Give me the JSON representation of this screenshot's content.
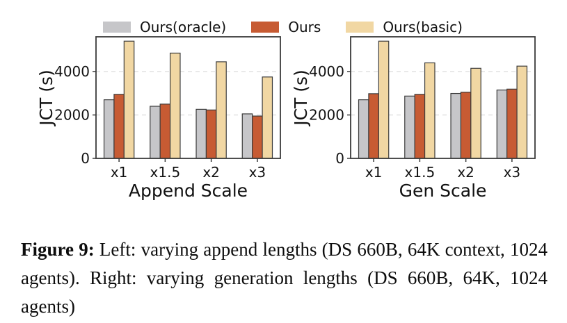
{
  "legend": {
    "items": [
      {
        "label": "Ours(oracle)",
        "color": "#c6c6c9"
      },
      {
        "label": "Ours",
        "color": "#c75b33"
      },
      {
        "label": "Ours(basic)",
        "color": "#f1d7a3"
      }
    ]
  },
  "style": {
    "bar_edge_color": "#3c3c3c",
    "axis_color": "#3a3a3a",
    "gridline_color": "#dcdcdc",
    "text_color": "#111111"
  },
  "chart_data": [
    {
      "type": "bar",
      "title": "",
      "xlabel": "Append Scale",
      "ylabel": "JCT (s)",
      "categories": [
        "x1",
        "x1.5",
        "x2",
        "x3"
      ],
      "series": [
        {
          "name": "Ours(oracle)",
          "color": "#c6c6c9",
          "values": [
            2700,
            2400,
            2260,
            2050
          ]
        },
        {
          "name": "Ours",
          "color": "#c75b33",
          "values": [
            2950,
            2500,
            2230,
            1950
          ]
        },
        {
          "name": "Ours(basic)",
          "color": "#f1d7a3",
          "values": [
            5400,
            4850,
            4450,
            3750
          ]
        }
      ],
      "ylim": [
        0,
        5600
      ],
      "yticks": [
        0,
        2000,
        4000
      ],
      "grid": "horizontal-dashed",
      "legend_position": "above-figure"
    },
    {
      "type": "bar",
      "title": "",
      "xlabel": "Gen Scale",
      "ylabel": "JCT (s)",
      "categories": [
        "x1",
        "x1.5",
        "x2",
        "x3"
      ],
      "series": [
        {
          "name": "Ours(oracle)",
          "color": "#c6c6c9",
          "values": [
            2700,
            2870,
            2990,
            3150
          ]
        },
        {
          "name": "Ours",
          "color": "#c75b33",
          "values": [
            2980,
            2950,
            3050,
            3190
          ]
        },
        {
          "name": "Ours(basic)",
          "color": "#f1d7a3",
          "values": [
            5400,
            4400,
            4150,
            4250
          ]
        }
      ],
      "ylim": [
        0,
        5600
      ],
      "yticks": [
        0,
        2000,
        4000
      ],
      "grid": "horizontal-dashed",
      "legend_position": "above-figure"
    }
  ],
  "caption": {
    "label": "Figure 9:",
    "text": "Left: varying append lengths (DS 660B, 64K context, 1024 agents). Right: varying generation lengths (DS 660B, 64K, 1024 agents)"
  }
}
